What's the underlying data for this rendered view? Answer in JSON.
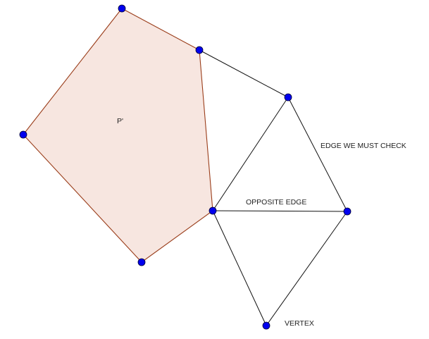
{
  "labels": {
    "polygon": "P'",
    "edge_check": "EDGE WE MUST CHECK",
    "opposite_edge": "OPPOSITE EDGE",
    "vertex": "VERTEX"
  },
  "colors": {
    "polygon_fill": "#f7e6e0",
    "polygon_stroke": "#9a3d1a",
    "edge": "#111111",
    "point": "#0000ee",
    "point_stroke": "#000033"
  }
}
